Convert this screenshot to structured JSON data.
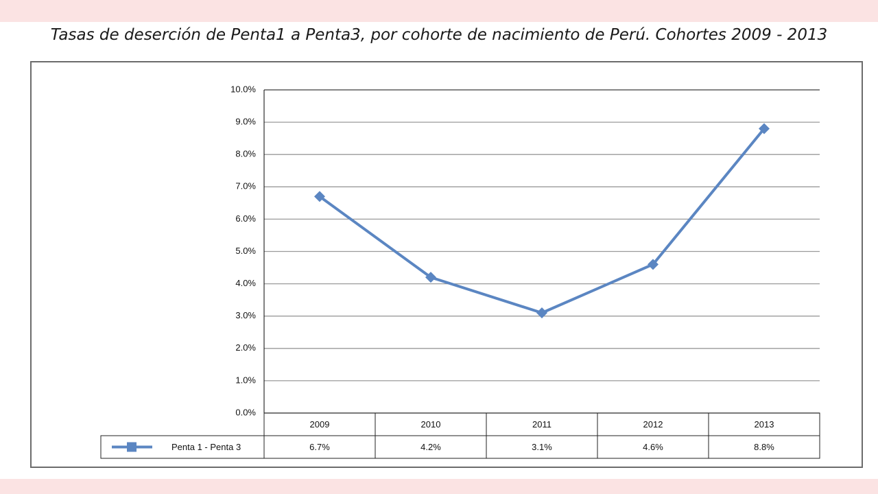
{
  "title": "Tasas de deserción de Penta1 a Penta3, por cohorte de nacimiento de Perú. Cohortes 2009 - 2013",
  "colors": {
    "series": "#5b86c2",
    "grid": "#9a9a9a",
    "axis": "#000000"
  },
  "chart_data": {
    "type": "line",
    "categories": [
      "2009",
      "2010",
      "2011",
      "2012",
      "2013"
    ],
    "series": [
      {
        "name": "Penta 1 - Penta 3",
        "values": [
          6.7,
          4.2,
          3.1,
          4.6,
          8.8
        ],
        "value_labels": [
          "6.7%",
          "4.2%",
          "3.1%",
          "4.6%",
          "8.8%"
        ]
      }
    ],
    "y_ticks": [
      "0.0%",
      "1.0%",
      "2.0%",
      "3.0%",
      "4.0%",
      "5.0%",
      "6.0%",
      "7.0%",
      "8.0%",
      "9.0%",
      "10.0%"
    ],
    "ylim": [
      0,
      10
    ],
    "grid": true,
    "legend": "data-table"
  }
}
